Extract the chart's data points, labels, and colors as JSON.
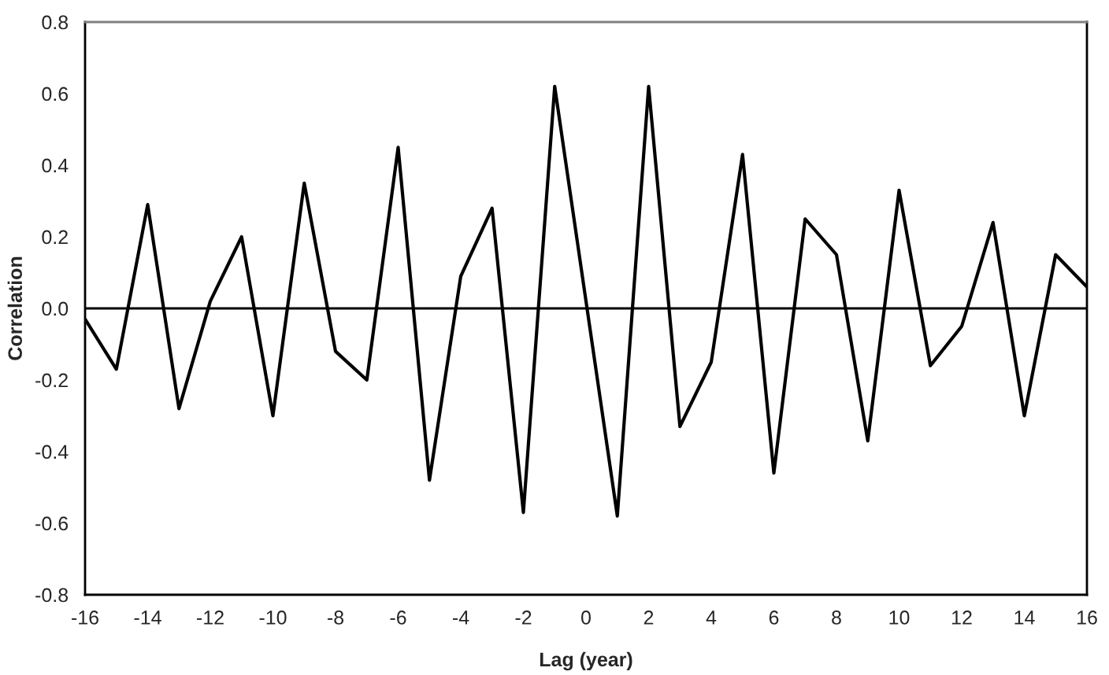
{
  "chart_data": {
    "type": "line",
    "xlabel": "Lag (year)",
    "ylabel": "Correlation",
    "x": [
      -16,
      -15,
      -14,
      -13,
      -12,
      -11,
      -10,
      -9,
      -8,
      -7,
      -6,
      -5,
      -4,
      -3,
      -2,
      -1,
      0,
      1,
      2,
      3,
      4,
      5,
      6,
      7,
      8,
      9,
      10,
      11,
      12,
      13,
      14,
      15,
      16
    ],
    "series": [
      {
        "color": "#000000",
        "values": [
          -0.03,
          -0.17,
          0.29,
          -0.28,
          0.02,
          0.2,
          -0.3,
          0.35,
          -0.12,
          -0.2,
          0.45,
          -0.48,
          0.09,
          0.28,
          -0.57,
          0.62,
          0.02,
          -0.58,
          0.62,
          -0.33,
          -0.15,
          0.43,
          -0.46,
          0.25,
          0.15,
          -0.37,
          0.33,
          -0.16,
          -0.05,
          0.24,
          -0.3,
          0.15,
          0.06
        ]
      }
    ],
    "xlim": [
      -16,
      16
    ],
    "xticks": [
      -16,
      -14,
      -12,
      -10,
      -8,
      -6,
      -4,
      -2,
      0,
      2,
      4,
      6,
      8,
      10,
      12,
      14,
      16
    ],
    "ylim": [
      -0.8,
      0.8
    ],
    "yticks": [
      {
        "value": -0.8,
        "label": "-0.8"
      },
      {
        "value": -0.6,
        "label": "-0.6"
      },
      {
        "value": -0.4,
        "label": "-0.4"
      },
      {
        "value": -0.2,
        "label": "-0.2"
      },
      {
        "value": 0,
        "label": "0.0"
      },
      {
        "value": 0.2,
        "label": "0.2"
      },
      {
        "value": 0.4,
        "label": "0.4"
      },
      {
        "value": 0.6,
        "label": "0.6"
      },
      {
        "value": 0.8,
        "label": "0.8"
      }
    ],
    "ref_lines": [
      {
        "axis": "y",
        "value": 0,
        "color": "#000000",
        "line_style": "solid"
      }
    ],
    "grid": false,
    "legend": false,
    "marker": "none",
    "line_style": "solid"
  }
}
